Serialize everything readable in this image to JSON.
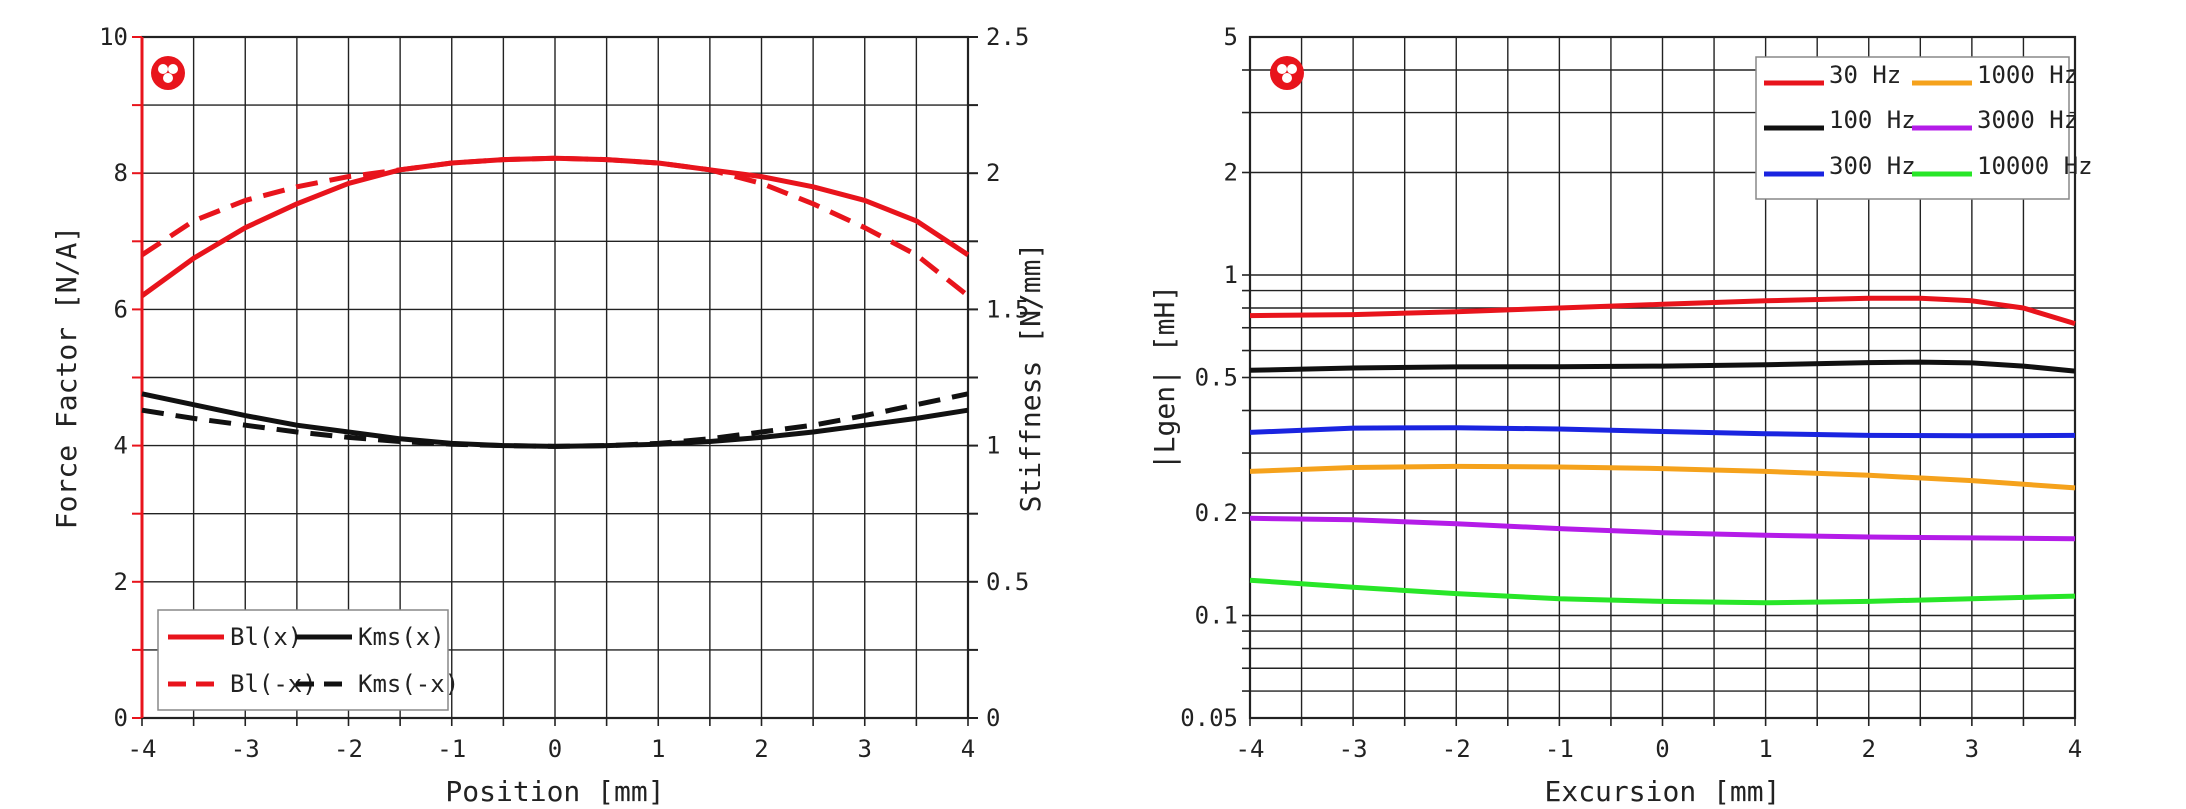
{
  "chart_data": [
    {
      "type": "line",
      "name": "force-factor-stiffness",
      "x": [
        -4,
        -3,
        -2,
        -1,
        0,
        1,
        2,
        3,
        4
      ],
      "xlabel": "Position [mm]",
      "xlim": [
        -4,
        4
      ],
      "x_ticks": [
        "-4",
        "-3",
        "-2",
        "-1",
        "0",
        "1",
        "2",
        "3",
        "4"
      ],
      "ylabel_left": "Force Factor [N/A]",
      "ylim_left": [
        0,
        10
      ],
      "y_ticks_left": [
        "0",
        "2",
        "4",
        "6",
        "8",
        "10"
      ],
      "ylabel_right": "Stiffness [N/mm]",
      "ylim_right": [
        0,
        2.5
      ],
      "y_ticks_right": [
        "0",
        "0.5",
        "1",
        "1.5",
        "2",
        "2.5"
      ],
      "left_axis_color": "#e8141c",
      "logo": "red-circle-logo",
      "legend_position": "bottom-left",
      "series": [
        {
          "name": "Bl(x)",
          "axis": "left",
          "color": "#e8141c",
          "dash": "solid",
          "x": [
            -4,
            -3.5,
            -3,
            -2.5,
            -2,
            -1.5,
            -1,
            -0.5,
            0,
            0.5,
            1,
            1.5,
            2,
            2.5,
            3,
            3.5,
            4
          ],
          "values": [
            6.2,
            6.75,
            7.2,
            7.55,
            7.85,
            8.05,
            8.15,
            8.2,
            8.22,
            8.2,
            8.15,
            8.05,
            7.95,
            7.8,
            7.6,
            7.3,
            6.8
          ]
        },
        {
          "name": "Bl(-x)",
          "axis": "left",
          "color": "#e8141c",
          "dash": "dashed",
          "x": [
            -4,
            -3.5,
            -3,
            -2.5,
            -2,
            -1.5,
            -1,
            -0.5,
            0,
            0.5,
            1,
            1.5,
            2,
            2.5,
            3,
            3.5,
            4
          ],
          "values": [
            6.8,
            7.3,
            7.6,
            7.8,
            7.95,
            8.05,
            8.15,
            8.2,
            8.22,
            8.2,
            8.15,
            8.05,
            7.85,
            7.55,
            7.2,
            6.8,
            6.2
          ]
        },
        {
          "name": "Kms(x)",
          "axis": "right",
          "color": "#111111",
          "dash": "solid",
          "x": [
            -4,
            -3.5,
            -3,
            -2.5,
            -2,
            -1.5,
            -1,
            -0.5,
            0,
            0.5,
            1,
            1.5,
            2,
            2.5,
            3,
            3.5,
            4
          ],
          "values": [
            1.19,
            1.15,
            1.11,
            1.075,
            1.05,
            1.025,
            1.008,
            1.0,
            0.997,
            1.0,
            1.005,
            1.015,
            1.03,
            1.05,
            1.075,
            1.1,
            1.13
          ]
        },
        {
          "name": "Kms(-x)",
          "axis": "right",
          "color": "#111111",
          "dash": "dashed",
          "x": [
            -4,
            -3.5,
            -3,
            -2.5,
            -2,
            -1.5,
            -1,
            -0.5,
            0,
            0.5,
            1,
            1.5,
            2,
            2.5,
            3,
            3.5,
            4
          ],
          "values": [
            1.13,
            1.1,
            1.075,
            1.05,
            1.03,
            1.015,
            1.005,
            1.0,
            0.997,
            1.0,
            1.008,
            1.025,
            1.05,
            1.075,
            1.11,
            1.15,
            1.19
          ]
        }
      ]
    },
    {
      "type": "line",
      "name": "inductance",
      "x": [
        -4,
        -3,
        -2,
        -1,
        0,
        1,
        2,
        3,
        4
      ],
      "xlabel": "Excursion [mm]",
      "xlim": [
        -4,
        4
      ],
      "x_ticks": [
        "-4",
        "-3",
        "-2",
        "-1",
        "0",
        "1",
        "2",
        "3",
        "4"
      ],
      "ylabel": "|Lgen| [mH]",
      "yscale": "log",
      "ylim": [
        0.05,
        5
      ],
      "y_ticks": [
        "0.05",
        "0.1",
        "0.2",
        "0.5",
        "1",
        "2",
        "5"
      ],
      "logo": "red-circle-logo",
      "legend_position": "top-right",
      "series": [
        {
          "name": "30 Hz",
          "color": "#e8141c",
          "x": [
            -4,
            -3,
            -2,
            -1,
            0,
            1,
            2,
            2.5,
            3,
            3.5,
            4
          ],
          "values": [
            0.76,
            0.765,
            0.78,
            0.8,
            0.82,
            0.84,
            0.855,
            0.855,
            0.84,
            0.8,
            0.72
          ]
        },
        {
          "name": "100 Hz",
          "color": "#111111",
          "x": [
            -4,
            -3,
            -2,
            -1,
            0,
            1,
            2,
            2.5,
            3,
            3.5,
            4
          ],
          "values": [
            0.525,
            0.533,
            0.537,
            0.538,
            0.54,
            0.545,
            0.553,
            0.555,
            0.552,
            0.54,
            0.522
          ]
        },
        {
          "name": "300 Hz",
          "color": "#1a24e0",
          "x": [
            -4,
            -3,
            -2,
            -1,
            0,
            1,
            2,
            3,
            4
          ],
          "values": [
            0.345,
            0.355,
            0.356,
            0.353,
            0.347,
            0.342,
            0.338,
            0.337,
            0.338
          ]
        },
        {
          "name": "1000 Hz",
          "color": "#f5a21c",
          "x": [
            -4,
            -3,
            -2,
            -1,
            0,
            1,
            2,
            3,
            4
          ],
          "values": [
            0.265,
            0.272,
            0.274,
            0.273,
            0.27,
            0.265,
            0.258,
            0.249,
            0.237
          ]
        },
        {
          "name": "3000 Hz",
          "color": "#b41ce8",
          "x": [
            -4,
            -3,
            -2,
            -1,
            0,
            1,
            2,
            3,
            4
          ],
          "values": [
            0.193,
            0.191,
            0.186,
            0.18,
            0.175,
            0.172,
            0.17,
            0.169,
            0.168
          ]
        },
        {
          "name": "10000 Hz",
          "color": "#28e628",
          "x": [
            -4,
            -3,
            -2,
            -1,
            0,
            1,
            2,
            3,
            4
          ],
          "values": [
            0.127,
            0.121,
            0.116,
            0.112,
            0.11,
            0.109,
            0.11,
            0.112,
            0.114
          ]
        }
      ]
    }
  ]
}
